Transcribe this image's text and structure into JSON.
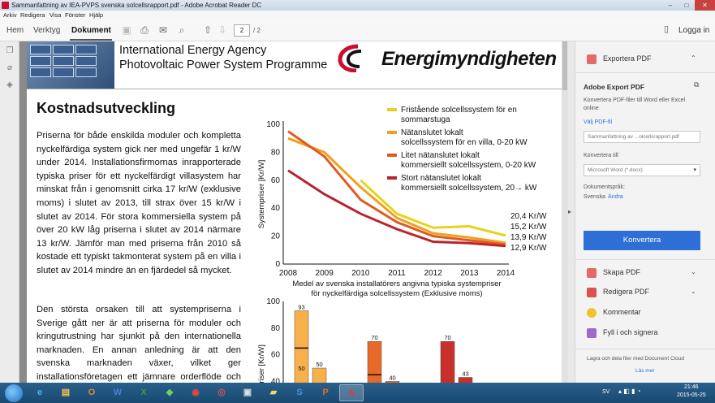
{
  "window": {
    "title": "Sammanfattning av IEA-PVPS svenska solcellsrapport.pdf - Adobe Acrobat Reader DC",
    "controls": {
      "minimize": "–",
      "maximize": "□",
      "close": "✕"
    }
  },
  "menu": [
    "Arkiv",
    "Redigera",
    "Visa",
    "Fönster",
    "Hjälp"
  ],
  "toolbar": {
    "tabs": [
      "Hem",
      "Verktyg",
      "Dokument"
    ],
    "active_tab": "Dokument",
    "page_current": "2",
    "page_total": "/ 2",
    "login": "Logga in"
  },
  "document": {
    "org_name_line1": "International Energy Agency",
    "org_name_line2": "Photovoltaic Power System Programme",
    "logo_text": "Energimyndigheten",
    "heading": "Kostnadsutveckling",
    "paragraph1": "Priserna för både enskilda moduler och kompletta nyckelfärdiga system gick ner med ungefär 1 kr/W under 2014. Installationsfirmornas inrapporterade typiska priser för ett nyckelfärdigt villasystem har minskat från i genomsnitt cirka 17 kr/W (exklusive moms) i slutet av 2013, till strax över 15 kr/W i slutet av 2014. För stora kommersiella system på över 20 kW låg priserna i slutet av 2014 närmare 13 kr/W. Jämför man med priserna från 2010 så kostade ett typiskt takmonterat system på en villa i slutet av 2014 mindre än en fjärdedel så mycket.",
    "paragraph2": "Den största orsaken till att systempriserna i Sverige gått ner är att priserna för moduler och kringutrustning har sjunkit på den internationella marknaden. En annan anledning är att den svenska marknaden växer, vilket ger installationsföretagen ett jämnare orderflöde och en"
  },
  "chart_data": [
    {
      "type": "line",
      "ylabel": "Systempriser [Kr/W]",
      "xlabel": "Medel av svenska installatörers angivna typiska systempriser för nyckelfärdiga solcellssystem (Exklusive moms)",
      "x": [
        2008,
        2009,
        2010,
        2011,
        2012,
        2013,
        2014
      ],
      "ylim": [
        0,
        100
      ],
      "yticks": [
        0,
        20,
        40,
        60,
        80,
        100
      ],
      "series": [
        {
          "name": "Fristående solcellssystem för en sommarstuga",
          "color": "#e8d21c",
          "values": [
            null,
            null,
            60,
            36,
            26,
            27,
            20.4
          ],
          "end_label": "20,4 Kr/W"
        },
        {
          "name": "Nätanslutet lokalt solcellssystem för en villa, 0-20 kW",
          "color": "#f0a020",
          "values": [
            90,
            80,
            55,
            33,
            22,
            19,
            15.2
          ],
          "end_label": "15,2 Kr/W"
        },
        {
          "name": "Litet nätanslutet lokalt kommersiellt solcellssystem, 0-20 kW",
          "color": "#e05a20",
          "values": [
            95,
            77,
            46,
            30,
            20,
            17,
            13.9
          ],
          "end_label": "13,9 Kr/W"
        },
        {
          "name": "Stort nätanslutet lokalt kommersiellt solcellssystem, 20→ kW",
          "color": "#b8242c",
          "values": [
            67,
            50,
            36,
            25,
            16,
            15,
            12.9
          ],
          "end_label": "12,9 Kr/W"
        }
      ]
    },
    {
      "type": "bar",
      "ylabel": "Priser [Kr/W]",
      "ylim": [
        0,
        100
      ],
      "yticks": [
        40,
        60,
        80,
        100
      ],
      "bars": [
        {
          "year": 2008,
          "color": "#f7b04a",
          "value": 93,
          "median": 65,
          "low": 50
        },
        {
          "year": 2009,
          "color": "#f7b04a",
          "value": 50,
          "median": null,
          "low": null
        },
        {
          "year": 2010,
          "color": "#e86a2a",
          "value": 70,
          "median": 45,
          "low": null
        },
        {
          "year": 2011,
          "color": "#e86a2a",
          "value": 40,
          "median": null,
          "low": null
        },
        {
          "year": 2012,
          "color": "#c8302a",
          "value": 70,
          "median": null,
          "low": null
        },
        {
          "year": 2013,
          "color": "#c8302a",
          "value": 43,
          "median": null,
          "low": null
        }
      ],
      "visible_labels": [
        "93",
        "50",
        "50",
        "70",
        "40",
        "70",
        "43"
      ]
    }
  ],
  "sidebar": {
    "export_pdf": "Exportera PDF",
    "adobe_export_title": "Adobe Export PDF",
    "adobe_export_desc": "Konvertera PDF-filer till Word eller Excel online",
    "select_file_link": "Välj PDF-fil",
    "file_name": "Sammanfattning av ...olcellsrapport.pdf",
    "convert_to_label": "Konvertera till",
    "convert_to_value": "Microsoft Word (*.docx)",
    "doc_language_label": "Dokumentspråk:",
    "doc_language_value": "Svenska",
    "change_link": "Ändra",
    "convert_button": "Konvertera",
    "tools": [
      "Skapa PDF",
      "Redigera PDF",
      "Kommentar",
      "Fyll i och signera"
    ],
    "cloud_text": "Lagra och dela filer med Document Cloud",
    "learn_more": "Läs mer"
  },
  "taskbar": {
    "lang": "SV",
    "time": "21:46",
    "date": "2015-05-25"
  },
  "colors": {
    "accent_blue": "#2d6fd6",
    "close_red": "#c8423f",
    "acrobat_red": "#c8102e"
  }
}
